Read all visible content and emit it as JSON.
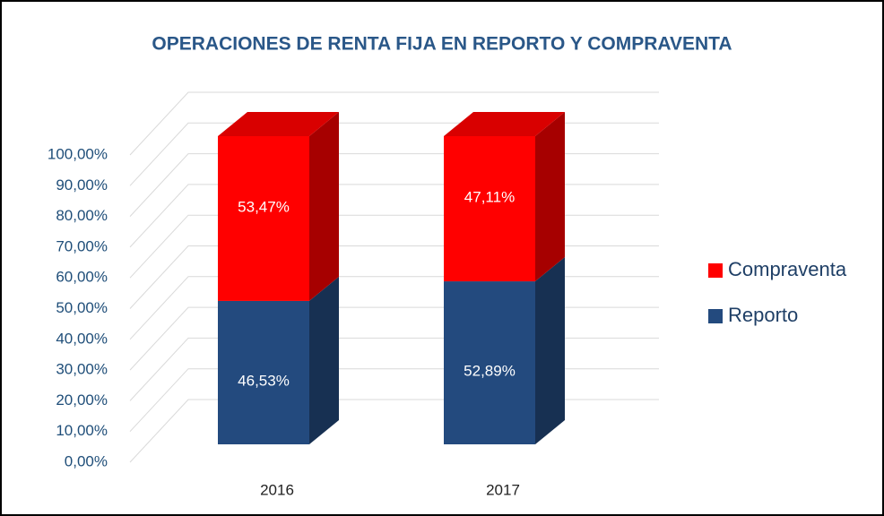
{
  "chart_data": {
    "type": "bar3d_stacked",
    "title": "OPERACIONES DE RENTA FIJA EN REPORTO Y COMPRAVENTA",
    "categories": [
      "2016",
      "2017"
    ],
    "series": [
      {
        "name": "Reporto",
        "color": "#234a7e",
        "values": [
          46.53,
          52.89
        ],
        "value_labels": [
          "46,53%",
          "52,89%"
        ]
      },
      {
        "name": "Compraventa",
        "color": "#ff0000",
        "values": [
          53.47,
          47.11
        ],
        "value_labels": [
          "53,47%",
          "47,11%"
        ]
      }
    ],
    "ylim": [
      0,
      100
    ],
    "yticks": [
      {
        "value": 0,
        "label": "0,00%"
      },
      {
        "value": 10,
        "label": "10,00%"
      },
      {
        "value": 20,
        "label": "20,00%"
      },
      {
        "value": 30,
        "label": "30,00%"
      },
      {
        "value": 40,
        "label": "40,00%"
      },
      {
        "value": 50,
        "label": "50,00%"
      },
      {
        "value": 60,
        "label": "60,00%"
      },
      {
        "value": 70,
        "label": "70,00%"
      },
      {
        "value": 80,
        "label": "80,00%"
      },
      {
        "value": 90,
        "label": "90,00%"
      },
      {
        "value": 100,
        "label": "100,00%"
      }
    ],
    "grid": true,
    "legend": "right"
  }
}
